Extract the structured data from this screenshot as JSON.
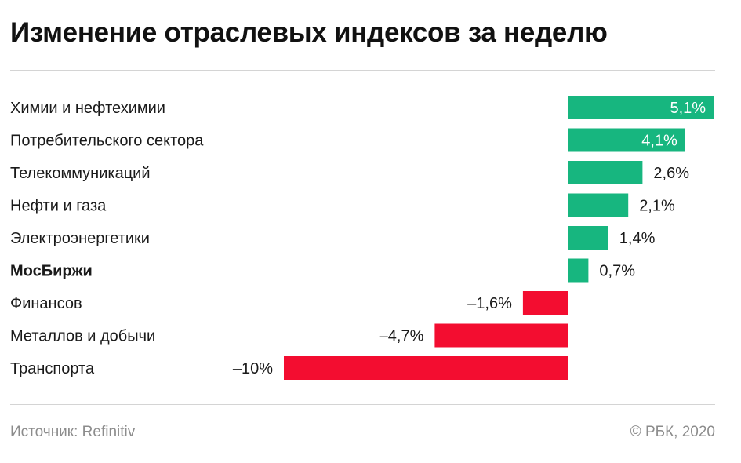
{
  "header": {
    "title": "Изменение отраслевых индексов за неделю"
  },
  "footer": {
    "source": "Источник: Refinitiv",
    "credit": "© РБК, 2020"
  },
  "colors": {
    "positive": "#17b67f",
    "negative": "#f30d30"
  },
  "chart_data": {
    "type": "bar",
    "orientation": "horizontal",
    "title": "Изменение отраслевых индексов за неделю",
    "categories": [
      "Химии и нефтехимии",
      "Потребительского сектора",
      "Телекоммуникаций",
      "Нефти и газа",
      "Электроэнергетики",
      "МосБиржи",
      "Финансов",
      "Металлов и добычи",
      "Транспорта"
    ],
    "values": [
      5.1,
      4.1,
      2.6,
      2.1,
      1.4,
      0.7,
      -1.6,
      -4.7,
      -10
    ],
    "value_labels": [
      "5,1%",
      "4,1%",
      "2,6%",
      "2,1%",
      "1,4%",
      "0,7%",
      "–1,6%",
      "–4,7%",
      "–10%"
    ],
    "highlight": "МосБиржи",
    "unit": "%",
    "grid": false,
    "legend": "none"
  }
}
